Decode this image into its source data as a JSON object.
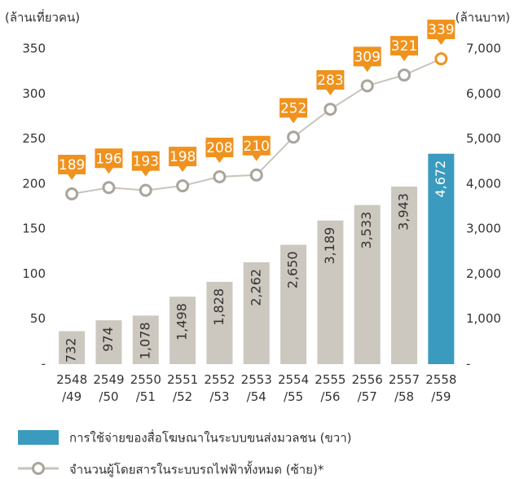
{
  "chart_data": {
    "type": "bar_line",
    "y_label": "(ล้านเที่ยวคน)",
    "y2_label": "(ล้านบาท)",
    "categories": [
      "2548/49",
      "2549/50",
      "2550/51",
      "2551/52",
      "2552/53",
      "2553/54",
      "2554/55",
      "2555/56",
      "2556/57",
      "2557/58",
      "2558/59"
    ],
    "ylim": [
      0,
      350
    ],
    "yticks": [
      {
        "value": 0,
        "label": "-"
      },
      50,
      100,
      150,
      200,
      250,
      300,
      350
    ],
    "y2lim": [
      0,
      7000
    ],
    "y2ticks": [
      {
        "value": 0,
        "label": "-"
      },
      {
        "value": 1000,
        "label": "1,000"
      },
      {
        "value": 2000,
        "label": "2,000"
      },
      {
        "value": 3000,
        "label": "3,000"
      },
      {
        "value": 4000,
        "label": "4,000"
      },
      {
        "value": 5000,
        "label": "5,000"
      },
      {
        "value": 6000,
        "label": "6,000"
      },
      {
        "value": 7000,
        "label": "7,000"
      }
    ],
    "series": [
      {
        "name": "การใช้จ่ายของสื่อโฆษณาในระบบขนส่งมวลชน (ขวา)",
        "type": "bar",
        "axis": "y2",
        "color": "#3a9bbf",
        "colors": [
          "#cdc8bf",
          "#cdc8bf",
          "#cdc8bf",
          "#cdc8bf",
          "#cdc8bf",
          "#cdc8bf",
          "#cdc8bf",
          "#cdc8bf",
          "#cdc8bf",
          "#cdc8bf",
          "#3a9bbf"
        ],
        "values": [
          732,
          974,
          1078,
          1498,
          1828,
          2262,
          2650,
          3189,
          3533,
          3943,
          4672
        ],
        "value_labels": [
          "732",
          "974",
          "1,078",
          "1,498",
          "1,828",
          "2,262",
          "2,650",
          "3,189",
          "3,533",
          "3,943",
          "4,672"
        ]
      },
      {
        "name": "จำนวนผู้โดยสารในระบบรถไฟฟ้าทั้งหมด (ซ้าย)*",
        "type": "line",
        "axis": "y",
        "color": "#c8c4bc",
        "label_color": "#f0921e",
        "last_marker_color": "#f0921e",
        "values": [
          189,
          196,
          193,
          198,
          208,
          210,
          252,
          283,
          309,
          321,
          339
        ]
      }
    ]
  }
}
